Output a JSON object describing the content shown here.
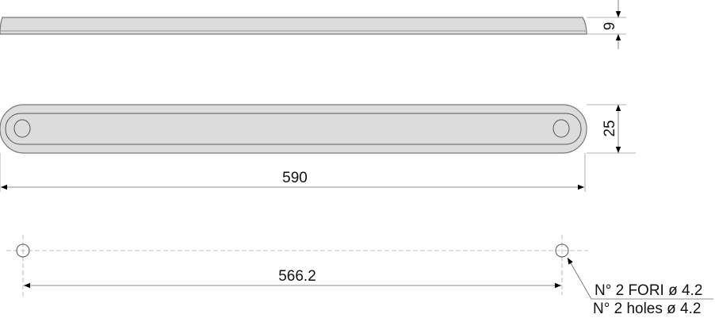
{
  "drawing": {
    "thickness_dim": "9",
    "width_dim": "25",
    "length_dim": "590",
    "hole_spacing_dim": "566.2",
    "hole_note_it": "N° 2 FORI ø 4.2",
    "hole_note_en": "N° 2 holes ø 4.2",
    "colors": {
      "part_fill": "#dcdcdc",
      "outline": "#777777",
      "dimension": "#666666"
    }
  }
}
